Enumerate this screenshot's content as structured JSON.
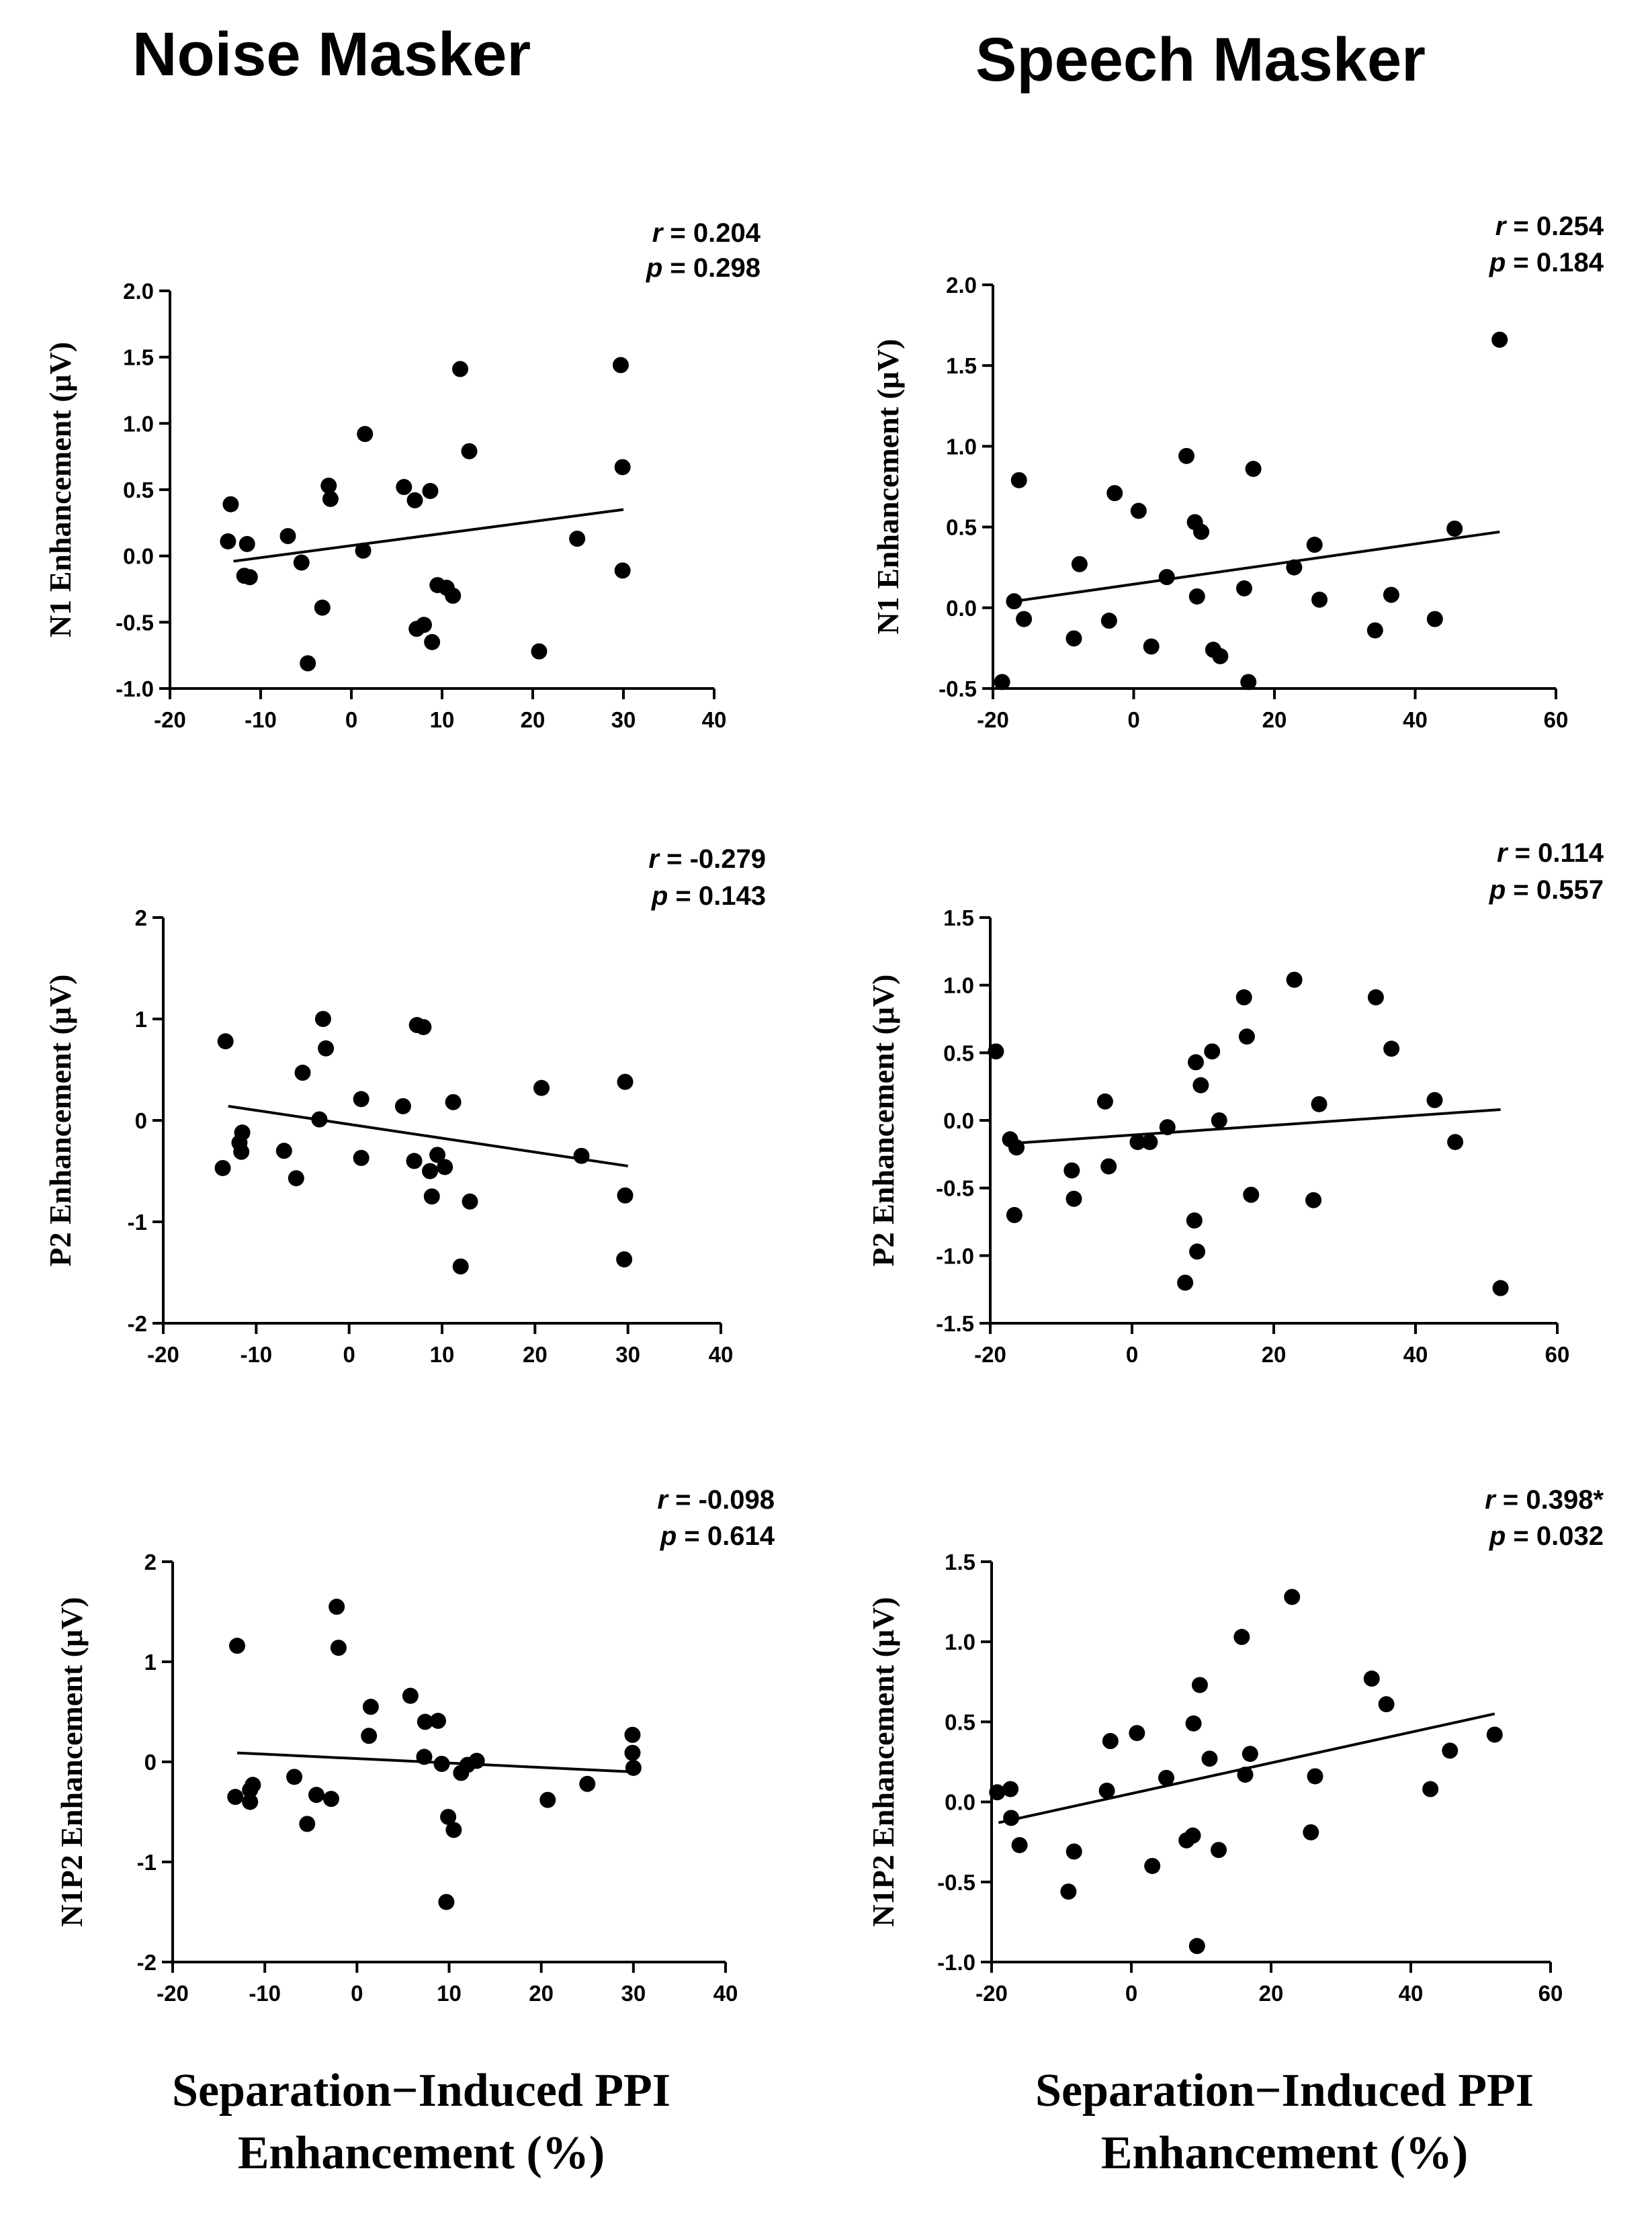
{
  "titles": {
    "left": "Noise Masker",
    "right": "Speech Masker"
  },
  "xlabel": {
    "line1": "Separation−Induced PPI",
    "line2": "Enhancement (%)"
  },
  "chart_data": [
    {
      "id": "noise-n1",
      "type": "scatter",
      "ylabel": "N1 Enhancement (μV)",
      "xlim": [
        -20,
        40
      ],
      "xticks": [
        -20,
        -10,
        0,
        10,
        20,
        30,
        40
      ],
      "ylim": [
        -1.0,
        2.0
      ],
      "yticks": [
        "2.0",
        "1.5",
        "1.0",
        "0.5",
        "0.0",
        "-0.5",
        "-1.0"
      ],
      "r_label": "r",
      "r": "= 0.204",
      "p_label": "p",
      "p": "= 0.298",
      "fit": [
        [
          -13,
          -0.04
        ],
        [
          30,
          0.35
        ]
      ],
      "points": [
        [
          -13.3,
          0.39
        ],
        [
          -13.6,
          0.11
        ],
        [
          -11.5,
          0.09
        ],
        [
          -11.8,
          -0.15
        ],
        [
          -11.2,
          -0.16
        ],
        [
          -7,
          0.15
        ],
        [
          -5.5,
          -0.05
        ],
        [
          -4.8,
          -0.81
        ],
        [
          -3.2,
          -0.39
        ],
        [
          -2.5,
          0.53
        ],
        [
          -2.3,
          0.43
        ],
        [
          1.3,
          0.04
        ],
        [
          1.5,
          0.92
        ],
        [
          5.8,
          0.52
        ],
        [
          7,
          0.42
        ],
        [
          7.2,
          -0.55
        ],
        [
          8,
          -0.52
        ],
        [
          8.7,
          0.49
        ],
        [
          8.9,
          -0.65
        ],
        [
          9.5,
          -0.22
        ],
        [
          10.5,
          -0.24
        ],
        [
          11.2,
          -0.3
        ],
        [
          12,
          1.41
        ],
        [
          13,
          0.79
        ],
        [
          20.7,
          -0.72
        ],
        [
          24.9,
          0.13
        ],
        [
          29.7,
          1.44
        ],
        [
          29.9,
          0.67
        ],
        [
          29.9,
          -0.11
        ]
      ]
    },
    {
      "id": "speech-n1",
      "type": "scatter",
      "ylabel": "N1 Enhancement (μV)",
      "xlim": [
        -20,
        60
      ],
      "xticks": [
        -20,
        0,
        20,
        40,
        60
      ],
      "ylim": [
        -0.5,
        2.0
      ],
      "yticks": [
        "2.0",
        "1.5",
        "1.0",
        "0.5",
        "0.0",
        "-0.5"
      ],
      "r_label": "r",
      "r": "= 0.254",
      "p_label": "p",
      "p": "= 0.184",
      "fit": [
        [
          -17,
          0.04
        ],
        [
          52,
          0.47
        ]
      ],
      "points": [
        [
          -18.7,
          -0.46
        ],
        [
          -17,
          0.04
        ],
        [
          -16.3,
          0.79
        ],
        [
          -15.6,
          -0.07
        ],
        [
          -8.5,
          -0.19
        ],
        [
          -7.7,
          0.27
        ],
        [
          -3.5,
          -0.08
        ],
        [
          -2.7,
          0.71
        ],
        [
          0.7,
          0.6
        ],
        [
          2.5,
          -0.24
        ],
        [
          4.7,
          0.19
        ],
        [
          7.5,
          0.94
        ],
        [
          8.7,
          0.53
        ],
        [
          9,
          0.07
        ],
        [
          9.6,
          0.47
        ],
        [
          11.3,
          -0.26
        ],
        [
          12.3,
          -0.3
        ],
        [
          15.7,
          0.12
        ],
        [
          16.3,
          -0.46
        ],
        [
          17,
          0.86
        ],
        [
          22.8,
          0.25
        ],
        [
          25.7,
          0.39
        ],
        [
          26.4,
          0.05
        ],
        [
          34.3,
          -0.14
        ],
        [
          36.6,
          0.08
        ],
        [
          42.8,
          -0.07
        ],
        [
          45.6,
          0.49
        ],
        [
          52,
          1.66
        ]
      ]
    },
    {
      "id": "noise-p2",
      "type": "scatter",
      "ylabel": "P2 Enhancement  (μV)",
      "xlim": [
        -20,
        40
      ],
      "xticks": [
        -20,
        -10,
        0,
        10,
        20,
        30,
        40
      ],
      "ylim": [
        -2,
        2
      ],
      "yticks": [
        "2",
        "1",
        "0",
        "-1",
        "-2"
      ],
      "r_label": "r",
      "r": "= -0.279",
      "p_label": "p",
      "p": "= 0.143",
      "fit": [
        [
          -13,
          0.14
        ],
        [
          30,
          -0.45
        ]
      ],
      "points": [
        [
          -13.6,
          -0.47
        ],
        [
          -13.3,
          0.78
        ],
        [
          -11.8,
          -0.22
        ],
        [
          -11.5,
          -0.12
        ],
        [
          -11.6,
          -0.31
        ],
        [
          -7,
          -0.3
        ],
        [
          -5.7,
          -0.57
        ],
        [
          -5,
          0.47
        ],
        [
          -3.2,
          0.01
        ],
        [
          -2.8,
          1.0
        ],
        [
          -2.5,
          0.71
        ],
        [
          1.3,
          0.21
        ],
        [
          1.3,
          -0.37
        ],
        [
          5.8,
          0.14
        ],
        [
          7,
          -0.4
        ],
        [
          7.3,
          0.94
        ],
        [
          8,
          0.92
        ],
        [
          8.7,
          -0.5
        ],
        [
          8.9,
          -0.75
        ],
        [
          9.5,
          -0.34
        ],
        [
          10.3,
          -0.46
        ],
        [
          11.2,
          0.18
        ],
        [
          12,
          -1.44
        ],
        [
          13,
          -0.8
        ],
        [
          20.7,
          0.32
        ],
        [
          25,
          -0.35
        ],
        [
          29.7,
          0.38
        ],
        [
          29.7,
          -0.74
        ],
        [
          29.6,
          -1.37
        ]
      ]
    },
    {
      "id": "speech-p2",
      "type": "scatter",
      "ylabel": "P2 Enhancement  (μV)",
      "xlim": [
        -20,
        60
      ],
      "xticks": [
        -20,
        0,
        20,
        40,
        60
      ],
      "ylim": [
        -1.5,
        1.5
      ],
      "yticks": [
        "1.5",
        "1.0",
        "0.5",
        "0.0",
        "-0.5",
        "-1.0",
        "-1.5"
      ],
      "r_label": "r",
      "r": "= 0.114",
      "p_label": "p",
      "p": "= 0.557",
      "fit": [
        [
          -17,
          -0.17
        ],
        [
          52,
          0.08
        ]
      ],
      "points": [
        [
          -19.2,
          0.51
        ],
        [
          -17.2,
          -0.14
        ],
        [
          -16.6,
          -0.7
        ],
        [
          -16.3,
          -0.2
        ],
        [
          -8.5,
          -0.37
        ],
        [
          -8.2,
          -0.58
        ],
        [
          -3.8,
          0.14
        ],
        [
          -3.3,
          -0.34
        ],
        [
          0.8,
          -0.16
        ],
        [
          2.5,
          -0.16
        ],
        [
          5,
          -0.05
        ],
        [
          7.5,
          -1.2
        ],
        [
          8.8,
          -0.74
        ],
        [
          9,
          0.43
        ],
        [
          9.2,
          -0.97
        ],
        [
          9.7,
          0.26
        ],
        [
          11.3,
          0.51
        ],
        [
          12.3,
          0.0
        ],
        [
          15.8,
          0.91
        ],
        [
          16.2,
          0.62
        ],
        [
          16.8,
          -0.55
        ],
        [
          22.9,
          1.04
        ],
        [
          25.6,
          -0.59
        ],
        [
          26.4,
          0.12
        ],
        [
          34.4,
          0.91
        ],
        [
          36.6,
          0.53
        ],
        [
          42.7,
          0.15
        ],
        [
          45.6,
          -0.16
        ],
        [
          52,
          -1.24
        ]
      ]
    },
    {
      "id": "noise-n1p2",
      "type": "scatter",
      "ylabel": "N1P2 Enhancement (μV)",
      "xlim": [
        -20,
        40
      ],
      "xticks": [
        -20,
        -10,
        0,
        10,
        20,
        30,
        40
      ],
      "ylim": [
        -2,
        2
      ],
      "yticks": [
        "2",
        "1",
        "0",
        "-1",
        "-2"
      ],
      "r_label": "r",
      "r": "= -0.098",
      "p_label": "p",
      "p": "= 0.614",
      "fit": [
        [
          -13,
          0.09
        ],
        [
          30,
          -0.1
        ]
      ],
      "points": [
        [
          -13.2,
          -0.35
        ],
        [
          -13,
          1.16
        ],
        [
          -11.6,
          -0.4
        ],
        [
          -11.3,
          -0.23
        ],
        [
          -11.6,
          -0.28
        ],
        [
          -6.8,
          -0.15
        ],
        [
          -5.4,
          -0.62
        ],
        [
          -4.4,
          -0.33
        ],
        [
          -2.8,
          -0.37
        ],
        [
          -2.2,
          1.55
        ],
        [
          -2,
          1.14
        ],
        [
          1.3,
          0.26
        ],
        [
          1.5,
          0.55
        ],
        [
          5.8,
          0.66
        ],
        [
          7.3,
          0.05
        ],
        [
          7.4,
          0.4
        ],
        [
          8.8,
          0.41
        ],
        [
          9.2,
          -0.02
        ],
        [
          9.7,
          -1.4
        ],
        [
          9.9,
          -0.55
        ],
        [
          10.5,
          -0.68
        ],
        [
          11.3,
          -0.11
        ],
        [
          12,
          -0.03
        ],
        [
          13,
          0.01
        ],
        [
          20.7,
          -0.38
        ],
        [
          25,
          -0.22
        ],
        [
          29.9,
          0.27
        ],
        [
          29.9,
          0.09
        ],
        [
          30,
          -0.06
        ]
      ]
    },
    {
      "id": "speech-n1p2",
      "type": "scatter",
      "ylabel": "N1P2 Enhancement (μV)",
      "xlim": [
        -20,
        60
      ],
      "xticks": [
        -20,
        0,
        20,
        40,
        60
      ],
      "ylim": [
        -1.0,
        1.5
      ],
      "yticks": [
        "1.5",
        "1.0",
        "0.5",
        "0.0",
        "-0.5",
        "-1.0"
      ],
      "r_label": "r",
      "r": "= 0.398*",
      "p_label": "p",
      "p": "= 0.032",
      "fit": [
        [
          -19,
          -0.13
        ],
        [
          52,
          0.55
        ]
      ],
      "points": [
        [
          -19.2,
          0.06
        ],
        [
          -17.3,
          0.08
        ],
        [
          -17.2,
          -0.1
        ],
        [
          -16,
          -0.27
        ],
        [
          -9,
          -0.56
        ],
        [
          -8.2,
          -0.31
        ],
        [
          -3.5,
          0.07
        ],
        [
          -3,
          0.38
        ],
        [
          0.8,
          0.43
        ],
        [
          3,
          -0.4
        ],
        [
          5,
          0.15
        ],
        [
          7.9,
          -0.24
        ],
        [
          8.8,
          -0.21
        ],
        [
          8.9,
          0.49
        ],
        [
          9.4,
          -0.9
        ],
        [
          9.8,
          0.73
        ],
        [
          11.2,
          0.27
        ],
        [
          12.5,
          -0.3
        ],
        [
          15.8,
          1.03
        ],
        [
          16.3,
          0.17
        ],
        [
          17,
          0.3
        ],
        [
          23,
          1.28
        ],
        [
          25.7,
          -0.19
        ],
        [
          26.3,
          0.16
        ],
        [
          34.4,
          0.77
        ],
        [
          36.5,
          0.61
        ],
        [
          42.8,
          0.08
        ],
        [
          45.6,
          0.32
        ],
        [
          52,
          0.42
        ]
      ]
    }
  ]
}
